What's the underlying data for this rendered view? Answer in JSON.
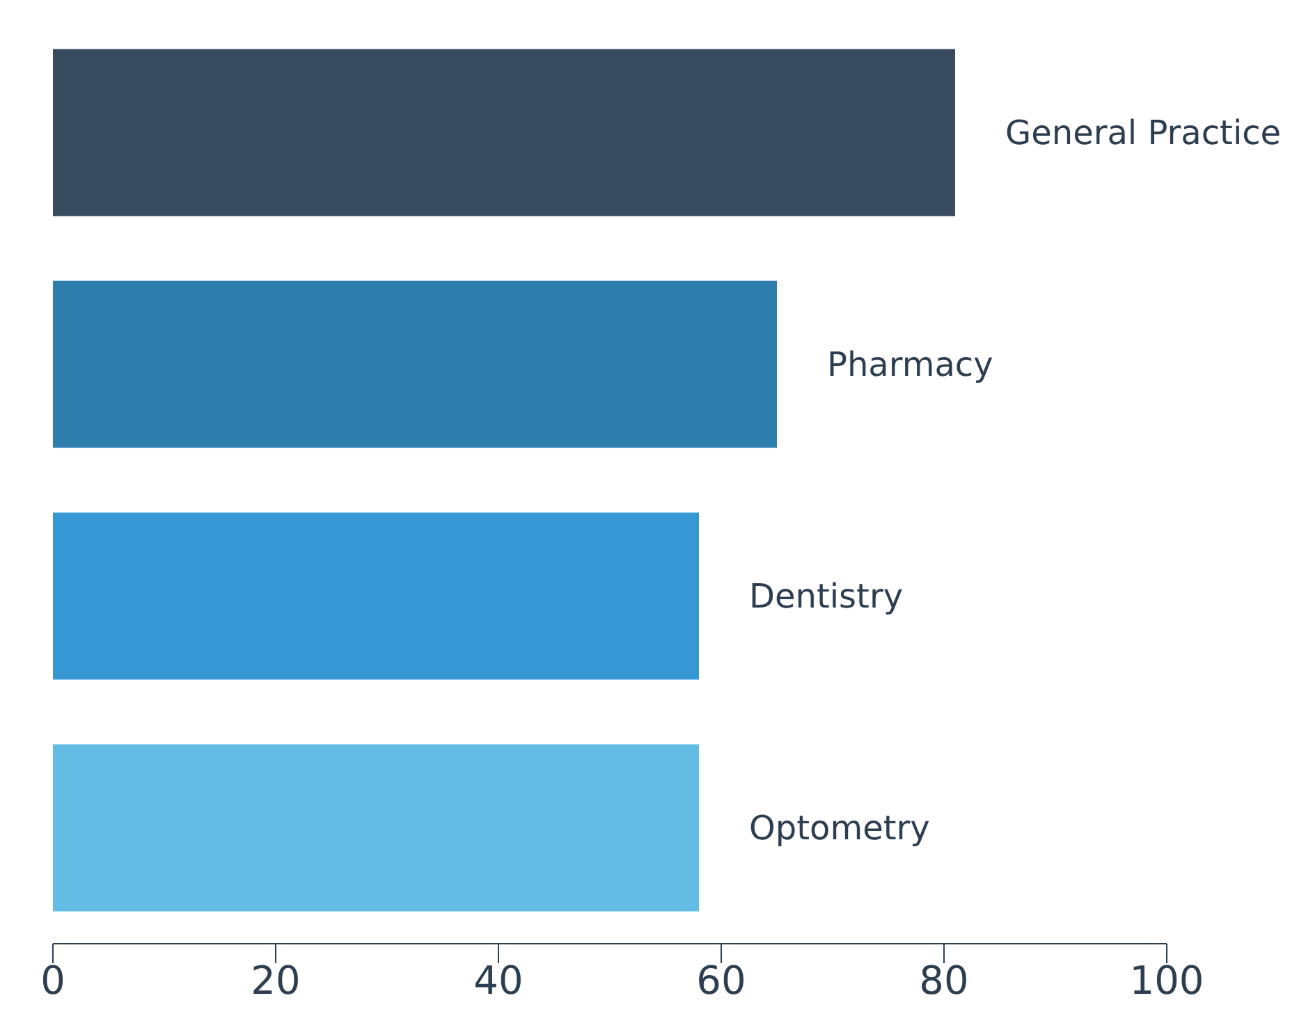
{
  "chart_data": {
    "type": "bar",
    "orientation": "horizontal",
    "categories": [
      "General Practice",
      "Pharmacy",
      "Dentistry",
      "Optometry"
    ],
    "values": [
      81,
      65,
      58,
      58
    ],
    "colors": [
      "#374a5e",
      "#2e7eae",
      "#3597d4",
      "#63bce3"
    ],
    "xlim": [
      0,
      100
    ],
    "xticks": [
      0,
      20,
      40,
      60,
      80,
      100
    ],
    "grid": false,
    "legend": false
  }
}
